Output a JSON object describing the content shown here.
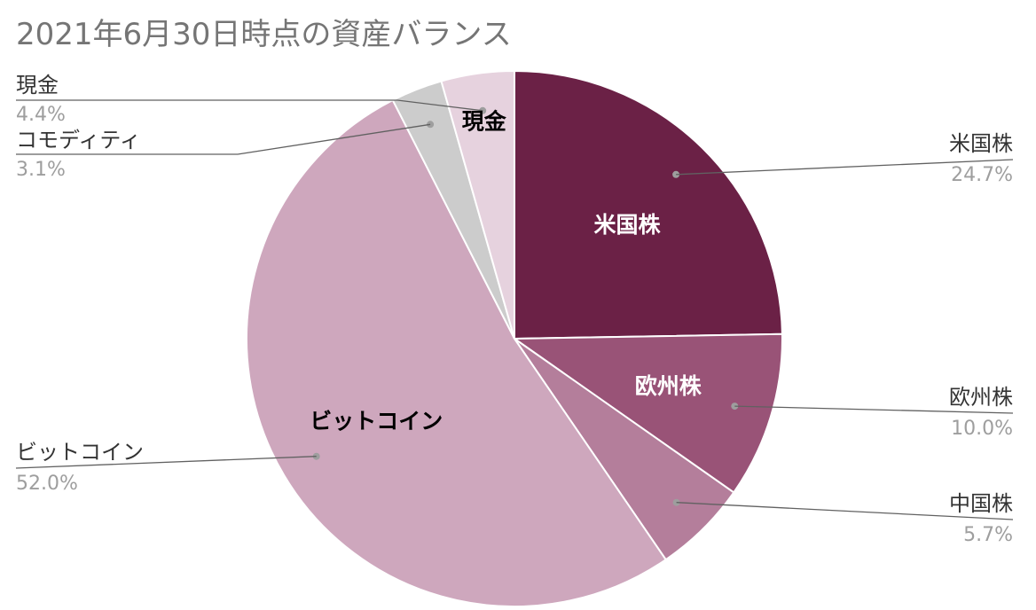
{
  "chart_data": {
    "type": "pie",
    "title": "2021年6月30日時点の資産バランス",
    "slices": [
      {
        "label": "米国株",
        "value": 24.7,
        "value_label": "24.7%",
        "color": "#6b2146",
        "inner_label": "米国株",
        "inner_text_color": "#ffffff"
      },
      {
        "label": "欧州株",
        "value": 10.0,
        "value_label": "10.0%",
        "color": "#995377",
        "inner_label": "欧州株",
        "inner_text_color": "#ffffff"
      },
      {
        "label": "中国株",
        "value": 5.7,
        "value_label": "5.7%",
        "color": "#b47e9b",
        "inner_label": "",
        "inner_text_color": "#ffffff"
      },
      {
        "label": "ビットコイン",
        "value": 52.0,
        "value_label": "52.0%",
        "color": "#cea7bd",
        "inner_label": "ビットコイン",
        "inner_text_color": "#000000"
      },
      {
        "label": "コモディティ",
        "value": 3.1,
        "value_label": "3.1%",
        "color": "#cccccc",
        "inner_label": "",
        "inner_text_color": "#000000"
      },
      {
        "label": "現金",
        "value": 4.4,
        "value_label": "4.4%",
        "color": "#e6d2de",
        "inner_label": "現金",
        "inner_text_color": "#000000"
      }
    ],
    "start_angle": "12 o'clock",
    "direction": "clockwise",
    "legend": "none"
  }
}
